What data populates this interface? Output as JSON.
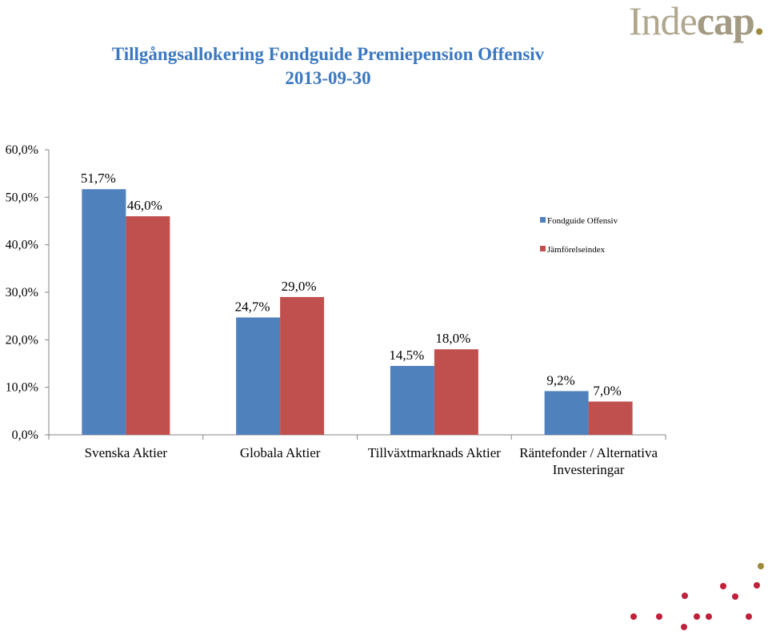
{
  "header": {
    "title": "Tillgångsallokering Fondguide Premiepension Offensiv",
    "date": "2013-09-30",
    "logo_main": "Inde",
    "logo_accent": "cap",
    "logo_dot": "."
  },
  "colors": {
    "series_1": "#4f81bd",
    "series_2": "#c0504d",
    "title": "#3b78c2",
    "decor_dots": "#c0203a",
    "decor_dot_accent": "#9a8a3a"
  },
  "chart_data": {
    "type": "bar",
    "title": "Tillgångsallokering Fondguide Premiepension Offensiv",
    "subtitle": "2013-09-30",
    "categories": [
      [
        "Svenska Aktier"
      ],
      [
        "Globala Aktier"
      ],
      [
        "Tillväxtmarknads Aktier"
      ],
      [
        "Räntefonder / Alternativa",
        "Investeringar"
      ]
    ],
    "series": [
      {
        "name": "Fondguide Offensiv",
        "values": [
          51.7,
          24.7,
          14.5,
          9.2
        ],
        "labels": [
          "51,7%",
          "24,7%",
          "14,5%",
          "9,2%"
        ]
      },
      {
        "name": "Jämförelseindex",
        "values": [
          46.0,
          29.0,
          18.0,
          7.0
        ],
        "labels": [
          "46,0%",
          "29,0%",
          "18,0%",
          "7,0%"
        ]
      }
    ],
    "ylim": [
      0,
      60
    ],
    "yticks": [
      "0,0%",
      "10,0%",
      "20,0%",
      "30,0%",
      "40,0%",
      "50,0%",
      "60,0%"
    ],
    "grid": false,
    "legend": "right"
  }
}
